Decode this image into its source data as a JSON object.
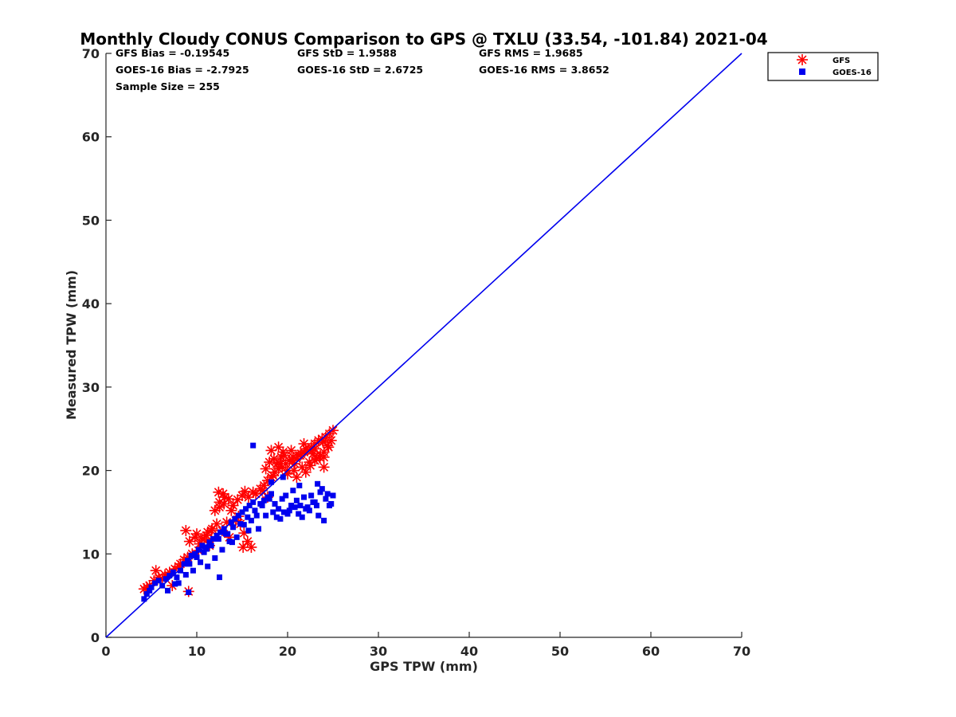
{
  "chart_data": {
    "type": "scatter",
    "title": "Monthly Cloudy CONUS Comparison to GPS @ TXLU (33.54, -101.84) 2021-04",
    "xlabel": "GPS TPW (mm)",
    "ylabel": "Measured TPW (mm)",
    "xlim": [
      0,
      70
    ],
    "ylim": [
      0,
      70
    ],
    "xticks": [
      "0",
      "10",
      "20",
      "30",
      "40",
      "50",
      "60",
      "70"
    ],
    "yticks": [
      "0",
      "10",
      "20",
      "30",
      "40",
      "50",
      "60",
      "70"
    ],
    "grid": false,
    "legend_position": "top-right, outside plot",
    "reference_line": {
      "name": "1:1 line",
      "x": [
        0,
        70
      ],
      "y": [
        0,
        70
      ],
      "color": "#0000ee"
    },
    "stats": {
      "gfs_bias": "GFS Bias = -0.19545",
      "gfs_std": "GFS StD = 1.9588",
      "gfs_rms": "GFS RMS = 1.9685",
      "goes_bias": "GOES-16 Bias = -2.7925",
      "goes_std": "GOES-16 StD = 2.6725",
      "goes_rms": "GOES-16 RMS = 3.8652",
      "sample_size": "Sample Size = 255"
    },
    "series": [
      {
        "name": "GFS",
        "marker": "asterisk",
        "color": "#ff0000",
        "x": [
          4.2,
          4.8,
          5.3,
          5.8,
          6.5,
          7.0,
          7.6,
          8.2,
          8.6,
          9.0,
          9.5,
          4.5,
          5.5,
          6.2,
          7.3,
          8.0,
          8.8,
          9.8,
          10.3,
          10.8,
          11.2,
          11.7,
          12.2,
          12.8,
          13.3,
          9.2,
          10.0,
          10.6,
          11.1,
          11.6,
          12.0,
          12.5,
          13.0,
          13.5,
          14.0,
          14.5,
          15.0,
          12.4,
          12.9,
          13.8,
          14.3,
          14.8,
          15.2,
          15.6,
          16.0,
          16.5,
          15.3,
          15.7,
          14.6,
          13.6,
          11.4,
          10.2,
          17.0,
          17.4,
          17.8,
          18.2,
          18.6,
          19.0,
          19.4,
          19.8,
          20.2,
          20.6,
          21.0,
          21.4,
          21.8,
          22.2,
          22.6,
          23.0,
          23.4,
          23.8,
          24.2,
          24.6,
          25.0,
          17.6,
          18.4,
          19.2,
          20.0,
          20.8,
          21.6,
          22.4,
          23.2,
          24.0,
          24.8,
          18.0,
          18.8,
          19.6,
          20.4,
          21.2,
          22.0,
          22.8,
          23.6,
          24.4,
          19.0,
          20.5,
          21.5,
          22.5,
          23.5,
          24.5,
          20.0,
          21.0,
          22.0,
          23.0,
          24.0,
          18.5,
          19.5,
          23.0,
          24.0,
          21.8,
          22.7,
          23.9,
          18.2,
          19.3,
          20.7,
          9.1,
          17.2,
          17.8,
          12.5,
          13.1,
          16.2,
          15.1
        ],
        "y": [
          5.8,
          6.2,
          6.8,
          7.2,
          7.5,
          7.8,
          8.2,
          8.8,
          9.3,
          9.6,
          10.0,
          6.0,
          8.0,
          7.0,
          6.2,
          8.5,
          12.8,
          12.0,
          11.2,
          11.8,
          12.6,
          13.0,
          13.6,
          12.8,
          13.8,
          11.5,
          12.4,
          11.8,
          12.2,
          12.8,
          15.2,
          15.6,
          16.0,
          16.6,
          15.8,
          16.5,
          17.0,
          17.4,
          17.2,
          15.2,
          14.0,
          13.6,
          12.5,
          11.5,
          10.8,
          17.2,
          17.5,
          16.8,
          14.5,
          12.0,
          11.0,
          10.4,
          17.8,
          18.2,
          18.8,
          19.2,
          19.8,
          20.2,
          20.4,
          20.8,
          21.2,
          21.6,
          21.4,
          21.8,
          22.2,
          22.4,
          22.8,
          23.2,
          23.6,
          23.8,
          24.0,
          24.4,
          24.8,
          20.2,
          19.4,
          20.8,
          19.6,
          20.8,
          20.4,
          21.0,
          21.4,
          22.2,
          23.6,
          21.0,
          20.8,
          21.8,
          22.4,
          21.8,
          22.6,
          22.0,
          21.8,
          23.0,
          22.8,
          21.2,
          22.0,
          20.6,
          21.6,
          22.8,
          20.0,
          19.2,
          19.8,
          21.2,
          20.4,
          21.4,
          22.2,
          22.6,
          21.6,
          23.2,
          22.4,
          23.4,
          22.4,
          21.6,
          20.0,
          5.5,
          17.6,
          16.8,
          16.2,
          16.8,
          17.4,
          10.8
        ]
      },
      {
        "name": "GOES-16",
        "marker": "square",
        "color": "#0000ee",
        "x": [
          4.2,
          4.5,
          4.8,
          5.0,
          5.4,
          5.8,
          6.2,
          6.6,
          7.0,
          7.4,
          7.8,
          8.2,
          8.6,
          9.0,
          9.4,
          9.8,
          10.2,
          10.6,
          11.0,
          11.4,
          11.8,
          12.2,
          12.6,
          13.0,
          13.4,
          13.8,
          14.2,
          14.6,
          15.0,
          15.4,
          15.8,
          16.2,
          16.6,
          17.0,
          17.4,
          17.8,
          18.2,
          18.6,
          19.0,
          19.4,
          19.8,
          20.2,
          20.6,
          21.0,
          21.4,
          21.8,
          22.2,
          22.6,
          23.0,
          23.4,
          23.8,
          24.2,
          24.6,
          25.0,
          8.0,
          8.8,
          9.6,
          10.4,
          11.2,
          12.0,
          12.8,
          13.6,
          14.4,
          15.2,
          16.0,
          16.8,
          17.6,
          18.4,
          19.2,
          20.0,
          20.8,
          21.6,
          22.4,
          23.2,
          24.0,
          24.8,
          9.2,
          10.0,
          10.8,
          11.6,
          12.4,
          13.2,
          14.0,
          14.8,
          15.6,
          16.4,
          17.2,
          18.0,
          18.8,
          19.6,
          20.4,
          21.2,
          22.0,
          22.8,
          23.6,
          24.4,
          16.2,
          12.5,
          9.1,
          18.2,
          19.5,
          21.3,
          23.3,
          6.8,
          7.6,
          11.1,
          13.9,
          15.7
        ],
        "y": [
          4.6,
          5.2,
          5.6,
          6.0,
          6.5,
          6.8,
          6.2,
          7.0,
          7.4,
          7.8,
          7.2,
          8.0,
          8.8,
          9.2,
          9.8,
          10.0,
          10.5,
          11.0,
          10.8,
          11.4,
          11.8,
          12.2,
          12.6,
          13.0,
          12.4,
          13.8,
          14.2,
          14.6,
          15.0,
          15.4,
          15.8,
          16.2,
          14.6,
          16.0,
          16.4,
          16.8,
          17.2,
          16.0,
          15.4,
          16.6,
          17.0,
          15.2,
          17.6,
          16.4,
          15.8,
          16.8,
          15.6,
          17.0,
          16.2,
          14.6,
          17.8,
          16.6,
          15.8,
          17.0,
          6.5,
          7.5,
          8.0,
          9.0,
          8.5,
          9.5,
          10.5,
          11.5,
          12.0,
          13.5,
          14.0,
          13.0,
          14.6,
          15.0,
          14.2,
          14.8,
          15.6,
          14.4,
          15.2,
          15.8,
          14.0,
          16.0,
          8.8,
          9.6,
          10.2,
          11.0,
          11.8,
          12.4,
          13.2,
          13.6,
          14.4,
          15.2,
          15.8,
          16.6,
          14.4,
          15.0,
          15.8,
          14.8,
          15.4,
          16.2,
          17.4,
          17.2,
          23.0,
          7.2,
          5.4,
          18.6,
          19.2,
          18.2,
          18.4,
          5.6,
          6.4,
          10.6,
          11.4,
          12.8
        ]
      }
    ]
  }
}
